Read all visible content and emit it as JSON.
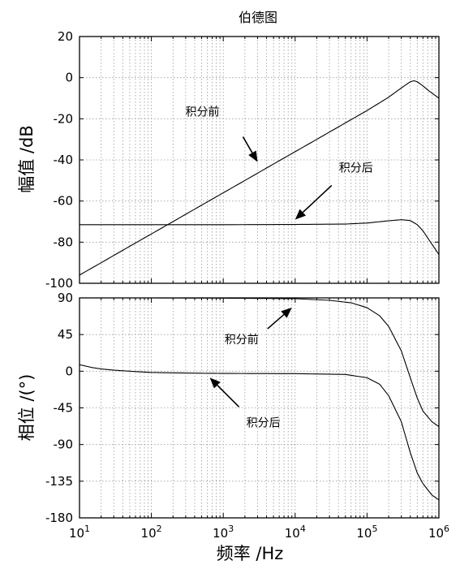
{
  "chart_data": [
    {
      "type": "line",
      "title": "伯德图",
      "ylabel": "幅值 /dB",
      "xscale": "log",
      "xlim": [
        10,
        1000000
      ],
      "ylim": [
        -100,
        20
      ],
      "xticks": [
        10,
        100,
        1000,
        10000,
        100000,
        1000000
      ],
      "yticks": [
        20,
        0,
        -20,
        -40,
        -60,
        -80,
        -100
      ],
      "grid": true,
      "series": [
        {
          "name": "积分前",
          "x": [
            10,
            20,
            50,
            100,
            200,
            500,
            1000,
            2000,
            5000,
            10000,
            20000,
            50000,
            100000,
            200000,
            300000,
            400000,
            450000,
            500000,
            600000,
            700000,
            800000,
            1000000
          ],
          "y": [
            -96,
            -90,
            -82,
            -76,
            -70,
            -62,
            -56,
            -50,
            -42,
            -36,
            -30,
            -22,
            -16,
            -9.5,
            -5,
            -2,
            -1.5,
            -2,
            -4,
            -6,
            -7.5,
            -10
          ]
        },
        {
          "name": "积分后",
          "x": [
            10,
            100,
            1000,
            10000,
            50000,
            100000,
            200000,
            300000,
            400000,
            500000,
            600000,
            700000,
            800000,
            1000000
          ],
          "y": [
            -71.5,
            -71.5,
            -71.5,
            -71.4,
            -71.2,
            -70.7,
            -69.6,
            -69.1,
            -69.5,
            -71.5,
            -74.5,
            -78,
            -81,
            -86
          ]
        }
      ],
      "annotations": [
        {
          "text": "积分前",
          "x": 3000,
          "y": -41
        },
        {
          "text": "积分后",
          "x": 10000,
          "y": -69
        }
      ]
    },
    {
      "type": "line",
      "xlabel": "频率 /Hz",
      "ylabel": "相位 /(°)",
      "xscale": "log",
      "xlim": [
        10,
        1000000
      ],
      "ylim": [
        -180,
        90
      ],
      "xticks": [
        10,
        100,
        1000,
        10000,
        100000,
        1000000
      ],
      "yticks": [
        90,
        45,
        0,
        -45,
        -90,
        -135,
        -180
      ],
      "grid": true,
      "series": [
        {
          "name": "积分前",
          "x": [
            10,
            100,
            1000,
            10000,
            30000,
            60000,
            100000,
            150000,
            200000,
            300000,
            400000,
            500000,
            600000,
            800000,
            1000000
          ],
          "y": [
            90,
            90,
            89.7,
            89,
            87,
            84,
            78,
            68,
            55,
            25,
            -8,
            -33,
            -49,
            -62,
            -68
          ]
        },
        {
          "name": "积分后",
          "x": [
            10,
            15,
            20,
            30,
            50,
            100,
            200,
            500,
            1000,
            10000,
            50000,
            100000,
            150000,
            200000,
            300000,
            400000,
            500000,
            600000,
            800000,
            1000000
          ],
          "y": [
            8,
            4.5,
            2.8,
            1.3,
            0,
            -1.5,
            -2,
            -2.5,
            -2.7,
            -3,
            -4,
            -8,
            -16,
            -30,
            -62,
            -100,
            -125,
            -138,
            -152,
            -158
          ]
        }
      ],
      "annotations": [
        {
          "text": "积分前",
          "x": 9000,
          "y": 78
        },
        {
          "text": "积分后",
          "x": 650,
          "y": -8
        }
      ]
    }
  ]
}
